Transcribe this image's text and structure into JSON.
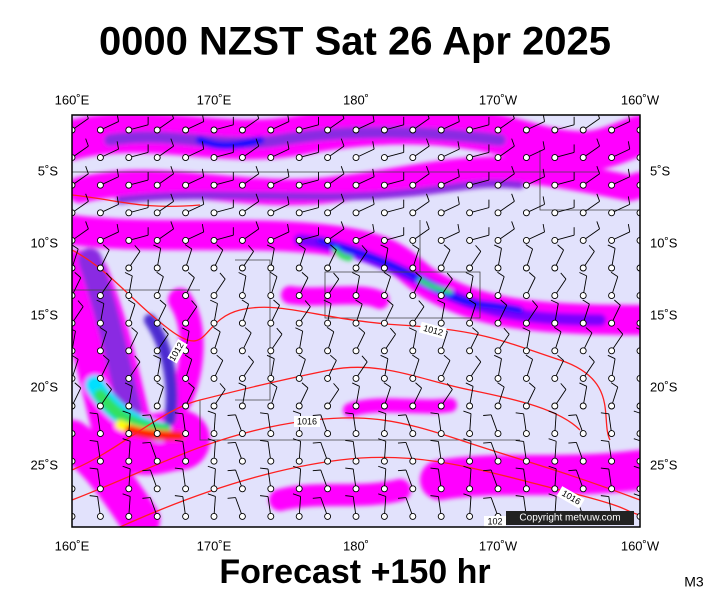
{
  "header": {
    "title": "0000 NZST Sat 26 Apr 2025"
  },
  "map": {
    "lon_labels": [
      "160˚E",
      "170˚E",
      "180˚",
      "170˚W",
      "160˚W"
    ],
    "lat_labels": [
      "5˚S",
      "10˚S",
      "15˚S",
      "20˚S",
      "25˚S"
    ],
    "isobar_labels": [
      "1012",
      "1012",
      "1016",
      "1016",
      "102"
    ],
    "copyright": "Copyright metvuw.com"
  },
  "footer": {
    "forecast": "Forecast +150 hr",
    "code": "M3"
  }
}
